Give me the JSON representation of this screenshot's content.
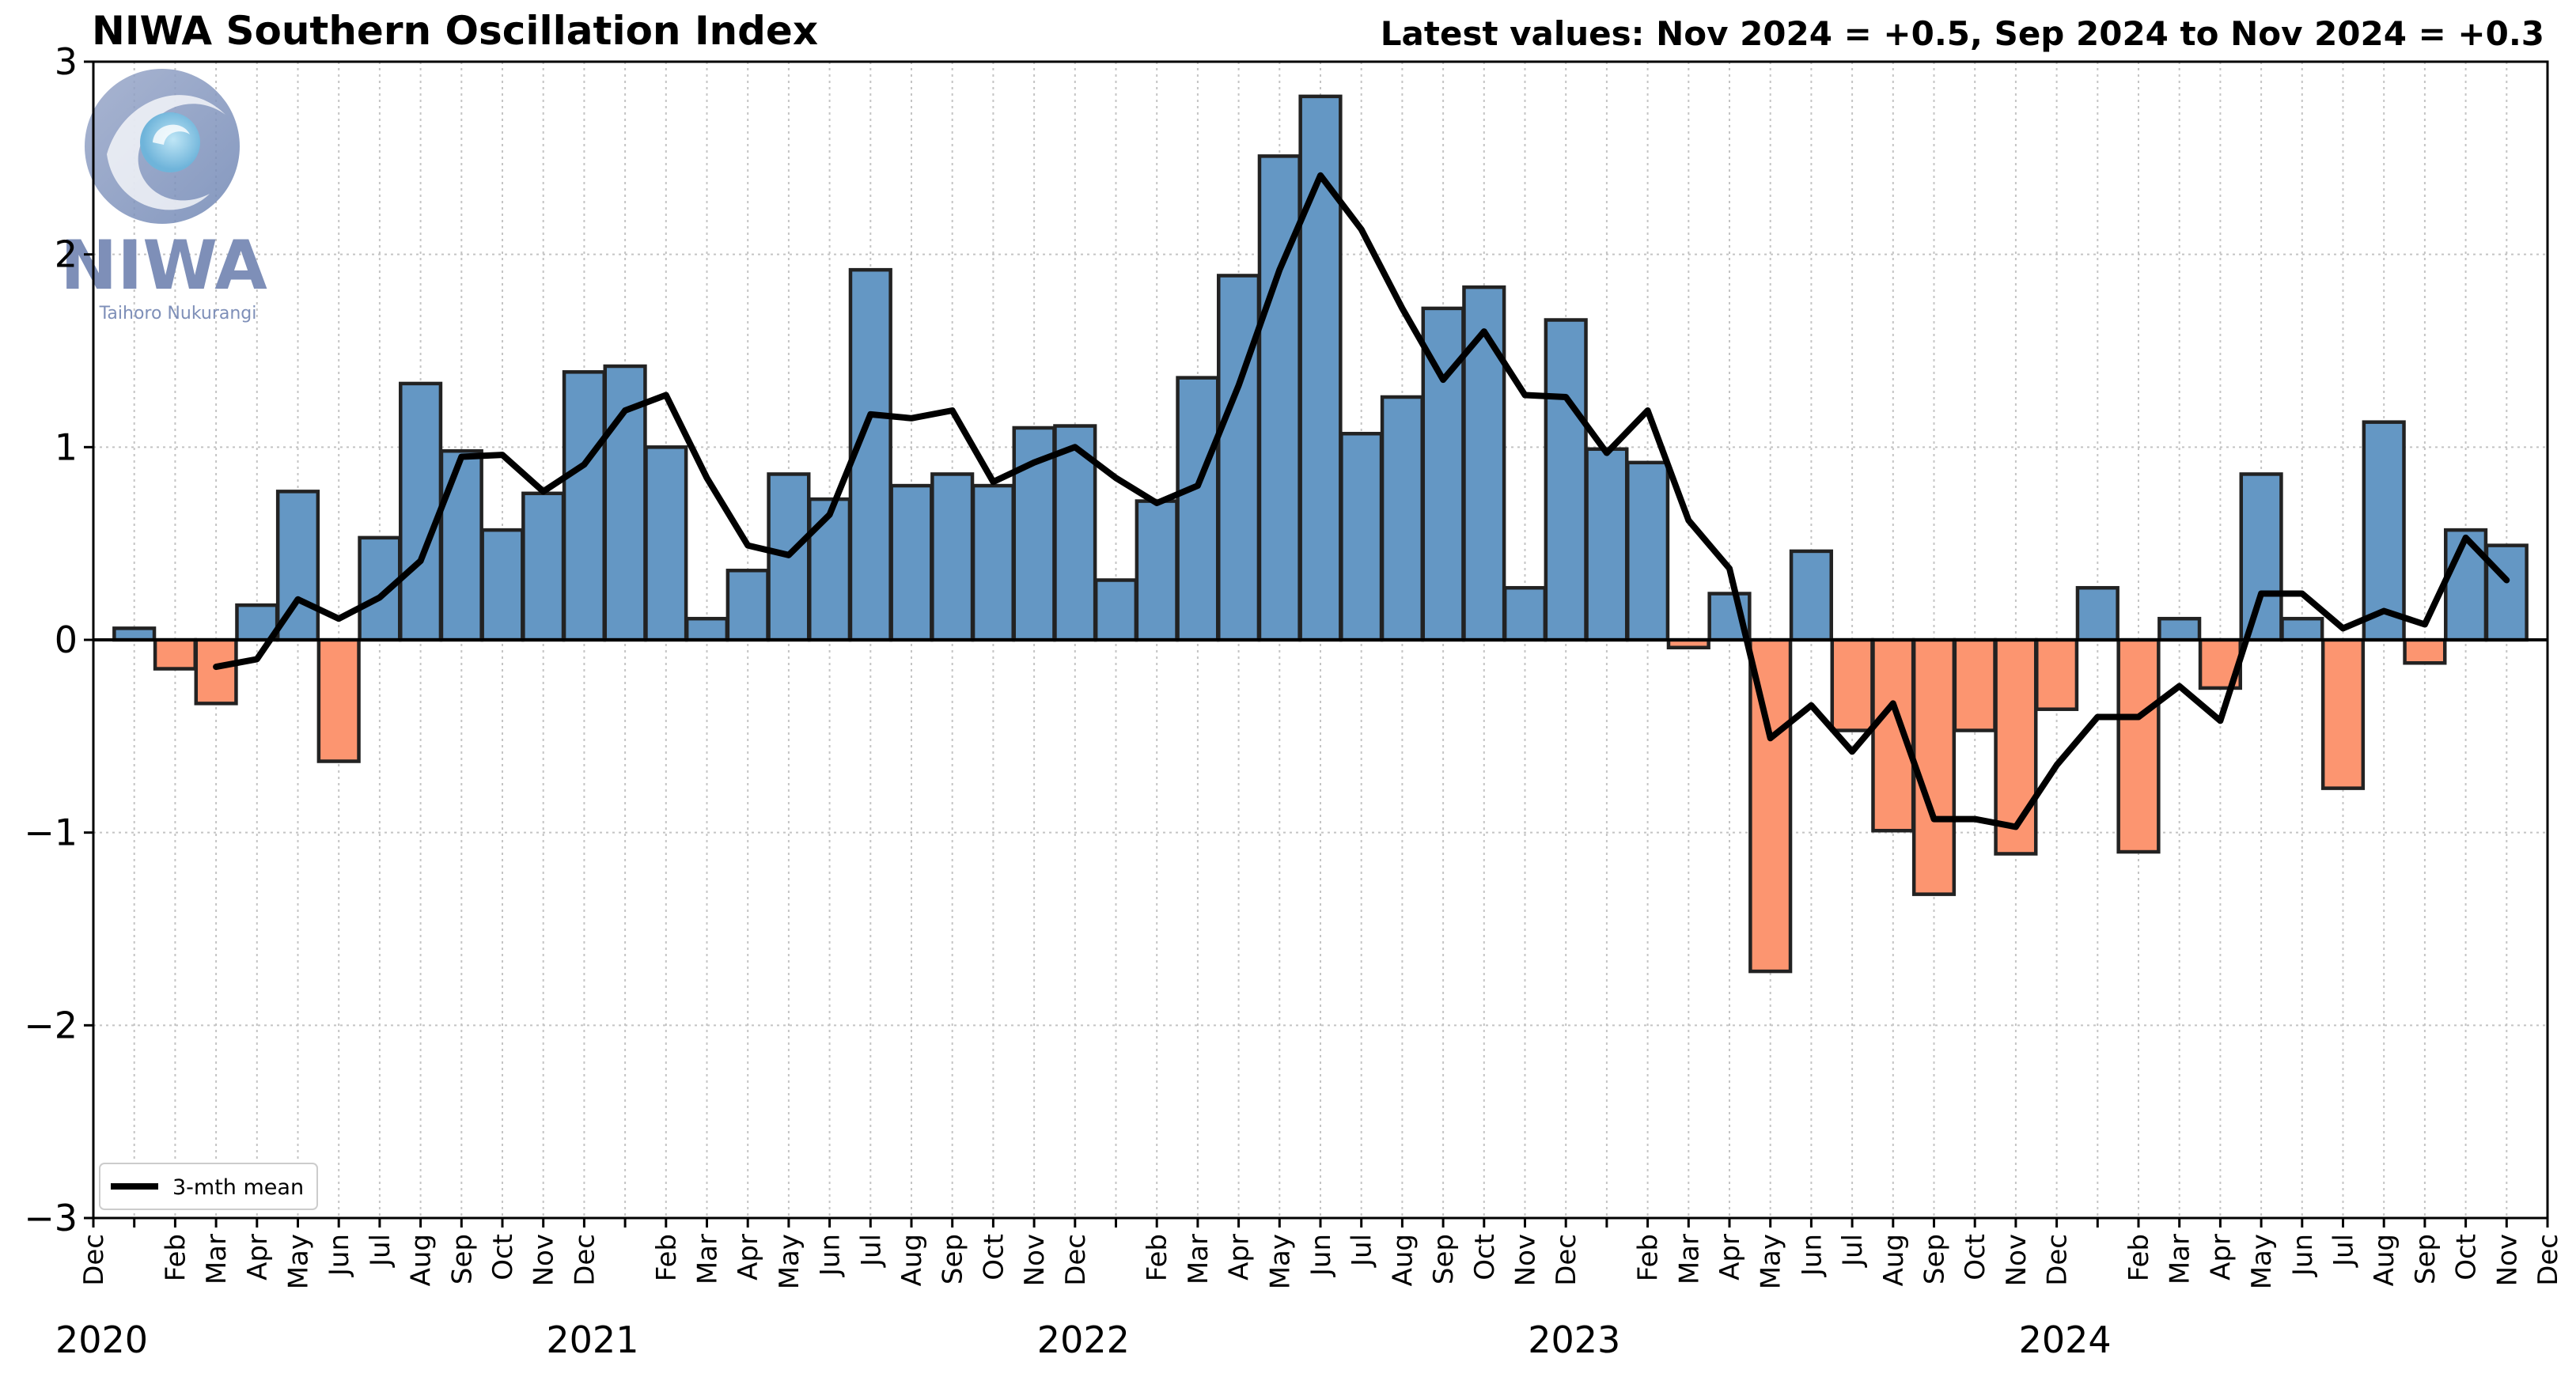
{
  "header": {
    "title": "NIWA Southern Oscillation Index",
    "latest": "Latest values: Nov 2024 = +0.5, Sep 2024 to Nov 2024 = +0.3"
  },
  "logo": {
    "text": "NIWA",
    "tagline": "Taihoro Nukurangi"
  },
  "colors": {
    "positive": "#6497c4",
    "negative": "#fc9570",
    "edge": "#222222",
    "line": "#000000"
  },
  "chart_data": {
    "type": "bar",
    "title": "NIWA Southern Oscillation Index",
    "ylim": [
      -3,
      3
    ],
    "yticks": [
      3,
      2,
      1,
      0,
      -1,
      -2,
      -3
    ],
    "ytick_labels": [
      "3",
      "2",
      "1",
      "0",
      "−1",
      "−2",
      "−3"
    ],
    "grid": true,
    "legend": {
      "position": "bottom-left",
      "label": "3-mth mean"
    },
    "x_labels": [
      "Dec",
      "Feb",
      "Mar",
      "Apr",
      "May",
      "Jun",
      "Jul",
      "Aug",
      "Sep",
      "Oct",
      "Nov",
      "Dec",
      "Feb",
      "Mar",
      "Apr",
      "May",
      "Jun",
      "Jul",
      "Aug",
      "Sep",
      "Oct",
      "Nov",
      "Dec",
      "Feb",
      "Mar",
      "Apr",
      "May",
      "Jun",
      "Jul",
      "Aug",
      "Sep",
      "Oct",
      "Nov",
      "Dec",
      "Feb",
      "Mar",
      "Apr",
      "May",
      "Jun",
      "Jul",
      "Aug",
      "Sep",
      "Oct",
      "Nov",
      "Dec",
      "Feb",
      "Mar",
      "Apr",
      "May",
      "Jun",
      "Jul",
      "Aug",
      "Sep",
      "Oct",
      "Nov",
      "Dec"
    ],
    "years": [
      "2020",
      "2021",
      "2022",
      "2023",
      "2024"
    ],
    "months": [
      "Jan 2020",
      "Feb 2020",
      "Mar 2020",
      "Apr 2020",
      "May 2020",
      "Jun 2020",
      "Jul 2020",
      "Aug 2020",
      "Sep 2020",
      "Oct 2020",
      "Nov 2020",
      "Dec 2020",
      "Jan 2021",
      "Feb 2021",
      "Mar 2021",
      "Apr 2021",
      "May 2021",
      "Jun 2021",
      "Jul 2021",
      "Aug 2021",
      "Sep 2021",
      "Oct 2021",
      "Nov 2021",
      "Dec 2021",
      "Jan 2022",
      "Feb 2022",
      "Mar 2022",
      "Apr 2022",
      "May 2022",
      "Jun 2022",
      "Jul 2022",
      "Aug 2022",
      "Sep 2022",
      "Oct 2022",
      "Nov 2022",
      "Dec 2022",
      "Jan 2023",
      "Feb 2023",
      "Mar 2023",
      "Apr 2023",
      "May 2023",
      "Jun 2023",
      "Jul 2023",
      "Aug 2023",
      "Sep 2023",
      "Oct 2023",
      "Nov 2023",
      "Dec 2023",
      "Jan 2024",
      "Feb 2024",
      "Mar 2024",
      "Apr 2024",
      "May 2024",
      "Jun 2024",
      "Jul 2024",
      "Aug 2024",
      "Sep 2024",
      "Oct 2024",
      "Nov 2024"
    ],
    "values": [
      0.06,
      -0.15,
      -0.33,
      0.18,
      0.77,
      -0.63,
      0.53,
      1.33,
      0.98,
      0.57,
      0.76,
      1.39,
      1.42,
      1.0,
      0.11,
      0.36,
      0.86,
      0.73,
      1.92,
      0.8,
      0.86,
      0.8,
      1.1,
      1.11,
      0.31,
      0.72,
      1.36,
      1.89,
      2.51,
      2.82,
      1.07,
      1.26,
      1.72,
      1.83,
      0.27,
      1.66,
      0.99,
      0.92,
      -0.04,
      0.24,
      -1.72,
      0.46,
      -0.47,
      -0.99,
      -1.32,
      -0.47,
      -1.11,
      -0.36,
      0.27,
      -1.1,
      0.11,
      -0.25,
      0.86,
      0.11,
      -0.77,
      1.13,
      -0.12,
      0.57,
      0.49
    ],
    "series": [
      {
        "name": "3-mth mean",
        "values": [
          null,
          null,
          -0.14,
          -0.1,
          0.21,
          0.11,
          0.22,
          0.41,
          0.95,
          0.96,
          0.77,
          0.91,
          1.19,
          1.27,
          0.84,
          0.49,
          0.44,
          0.65,
          1.17,
          1.15,
          1.19,
          0.82,
          0.92,
          1.0,
          0.84,
          0.71,
          0.8,
          1.32,
          1.92,
          2.41,
          2.13,
          1.72,
          1.35,
          1.6,
          1.27,
          1.26,
          0.97,
          1.19,
          0.62,
          0.37,
          -0.51,
          -0.34,
          -0.58,
          -0.33,
          -0.93,
          -0.93,
          -0.97,
          -0.65,
          -0.4,
          -0.4,
          -0.24,
          -0.42,
          0.24,
          0.24,
          0.06,
          0.15,
          0.08,
          0.53,
          0.31
        ]
      }
    ]
  }
}
